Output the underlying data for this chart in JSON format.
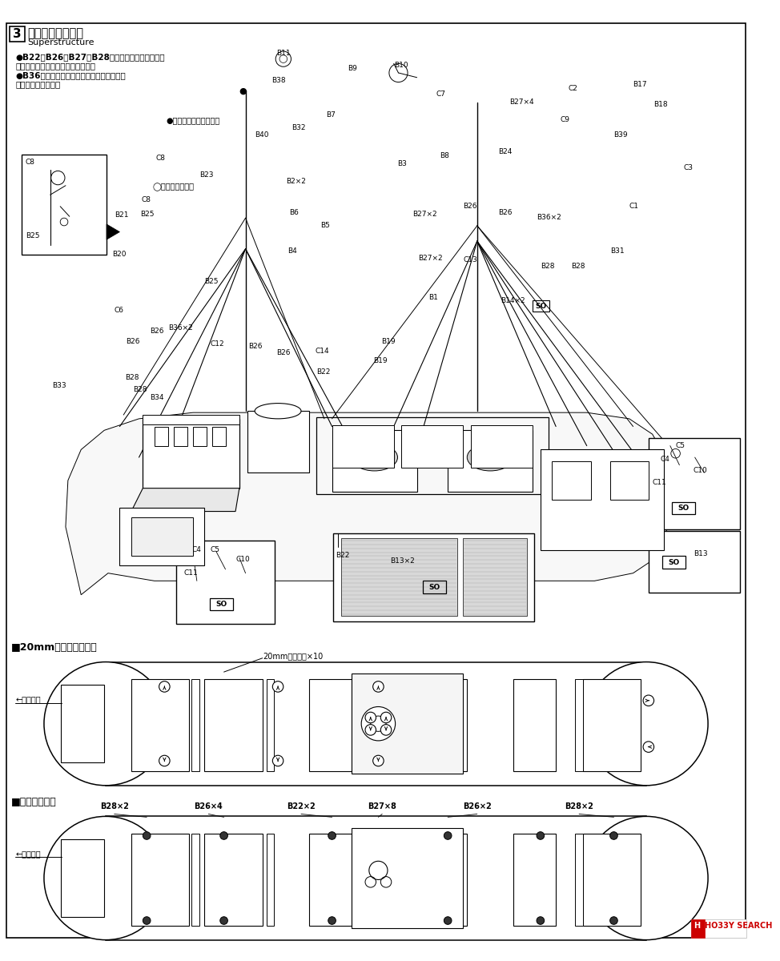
{
  "bg_color": "#ffffff",
  "title_step": "3",
  "title_jp": "構造物の組み立て",
  "title_en": "Superstructure",
  "note1a": "●B22，B26，B27，B28，の各通風筒は実艦では",
  "note1b": "どの方向でも向ける事が出来ます。",
  "note2a": "●B36のクレーン・ブームは角度を変えても",
  "note2b": "お楽しみ頂けます。",
  "hole_note": "●この穴は使用しません",
  "boom_note": "◯ブーム受けです",
  "section2_title": "■20mm単装機銃の配置",
  "section2_label": "20mm単装機銃×10",
  "bow_dir": "←艦首方向",
  "section3_title": "■通風筒の配置",
  "s3_labels": [
    "B28×2",
    "B26×4",
    "B22×2",
    "B27×8",
    "B26×2",
    "B28×2"
  ],
  "s3_x": [
    148,
    270,
    390,
    495,
    618,
    750
  ],
  "hobby_search_color": "#cc0000",
  "hobby_search_text": "HO33Y SEARCH"
}
